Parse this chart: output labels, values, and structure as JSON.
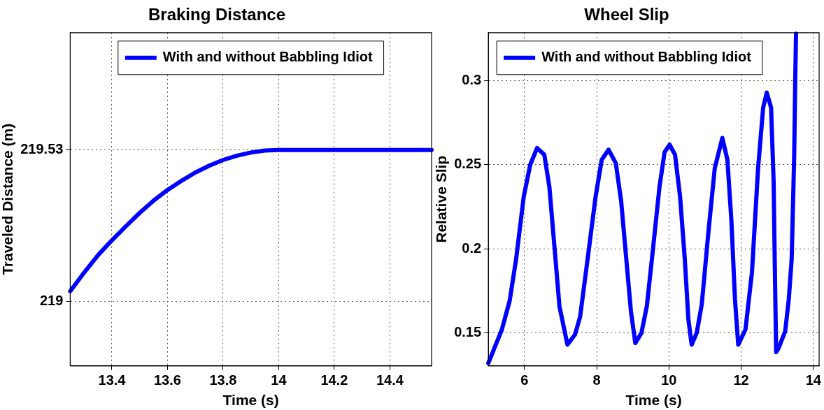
{
  "chart_data": [
    {
      "type": "line",
      "title": "Braking Distance",
      "xlabel": "Time (s)",
      "ylabel": "Traveled Distance (m)",
      "xlim": [
        13.25,
        14.55
      ],
      "xticks": [
        13.4,
        13.6,
        13.8,
        14,
        14.2,
        14.4
      ],
      "ylim": [
        218.775,
        219.94
      ],
      "yticks": [
        219,
        219.53
      ],
      "grid": true,
      "legend": "top",
      "marker": "none",
      "line_style": "solid",
      "series": [
        {
          "name": "With and without Babbling Idiot",
          "color": "#0000ff",
          "x": [
            13.25,
            13.3,
            13.35,
            13.4,
            13.45,
            13.5,
            13.55,
            13.6,
            13.65,
            13.7,
            13.75,
            13.8,
            13.85,
            13.9,
            13.95,
            14.0,
            14.2,
            14.4,
            14.55
          ],
          "values": [
            219.036,
            219.101,
            219.162,
            219.214,
            219.263,
            219.31,
            219.353,
            219.39,
            219.422,
            219.451,
            219.475,
            219.495,
            219.51,
            219.521,
            219.528,
            219.53,
            219.53,
            219.53,
            219.53
          ]
        }
      ]
    },
    {
      "type": "line",
      "title": "Wheel Slip",
      "xlabel": "Time (s)",
      "ylabel": "Relative Slip",
      "xlim": [
        5,
        14.16
      ],
      "xticks": [
        6,
        8,
        10,
        12,
        14
      ],
      "ylim": [
        0.1304,
        0.3286
      ],
      "yticks": [
        0.15,
        0.2,
        0.25,
        0.3
      ],
      "grid": true,
      "legend": "top left",
      "marker": "none",
      "line_style": "solid",
      "series": [
        {
          "name": "With and without Babbling Idiot",
          "color": "#0000ff",
          "x": [
            5.0,
            5.375,
            5.59,
            5.77,
            5.98,
            6.16,
            6.35,
            6.55,
            6.69,
            6.83,
            6.97,
            7.19,
            7.4,
            7.54,
            7.75,
            7.97,
            8.14,
            8.33,
            8.53,
            8.68,
            8.82,
            8.95,
            9.07,
            9.24,
            9.39,
            9.56,
            9.74,
            9.88,
            10.02,
            10.17,
            10.31,
            10.44,
            10.54,
            10.63,
            10.77,
            10.91,
            11.09,
            11.27,
            11.48,
            11.62,
            11.73,
            11.83,
            11.92,
            12.12,
            12.3,
            12.47,
            12.61,
            12.71,
            12.83,
            12.9,
            12.93,
            12.97,
            13.04,
            13.22,
            13.32,
            13.4,
            13.47,
            13.5,
            13.52
          ],
          "values": [
            0.132,
            0.152,
            0.169,
            0.194,
            0.231,
            0.25,
            0.26,
            0.256,
            0.237,
            0.2015,
            0.1657,
            0.143,
            0.149,
            0.1595,
            0.194,
            0.231,
            0.253,
            0.259,
            0.251,
            0.228,
            0.194,
            0.1626,
            0.144,
            0.15,
            0.166,
            0.2,
            0.237,
            0.2575,
            0.262,
            0.256,
            0.231,
            0.194,
            0.158,
            0.143,
            0.15,
            0.167,
            0.209,
            0.248,
            0.266,
            0.253,
            0.217,
            0.17,
            0.143,
            0.152,
            0.186,
            0.248,
            0.284,
            0.293,
            0.284,
            0.24,
            0.194,
            0.1385,
            0.141,
            0.151,
            0.17,
            0.194,
            0.256,
            0.3026,
            0.328
          ]
        }
      ]
    }
  ]
}
